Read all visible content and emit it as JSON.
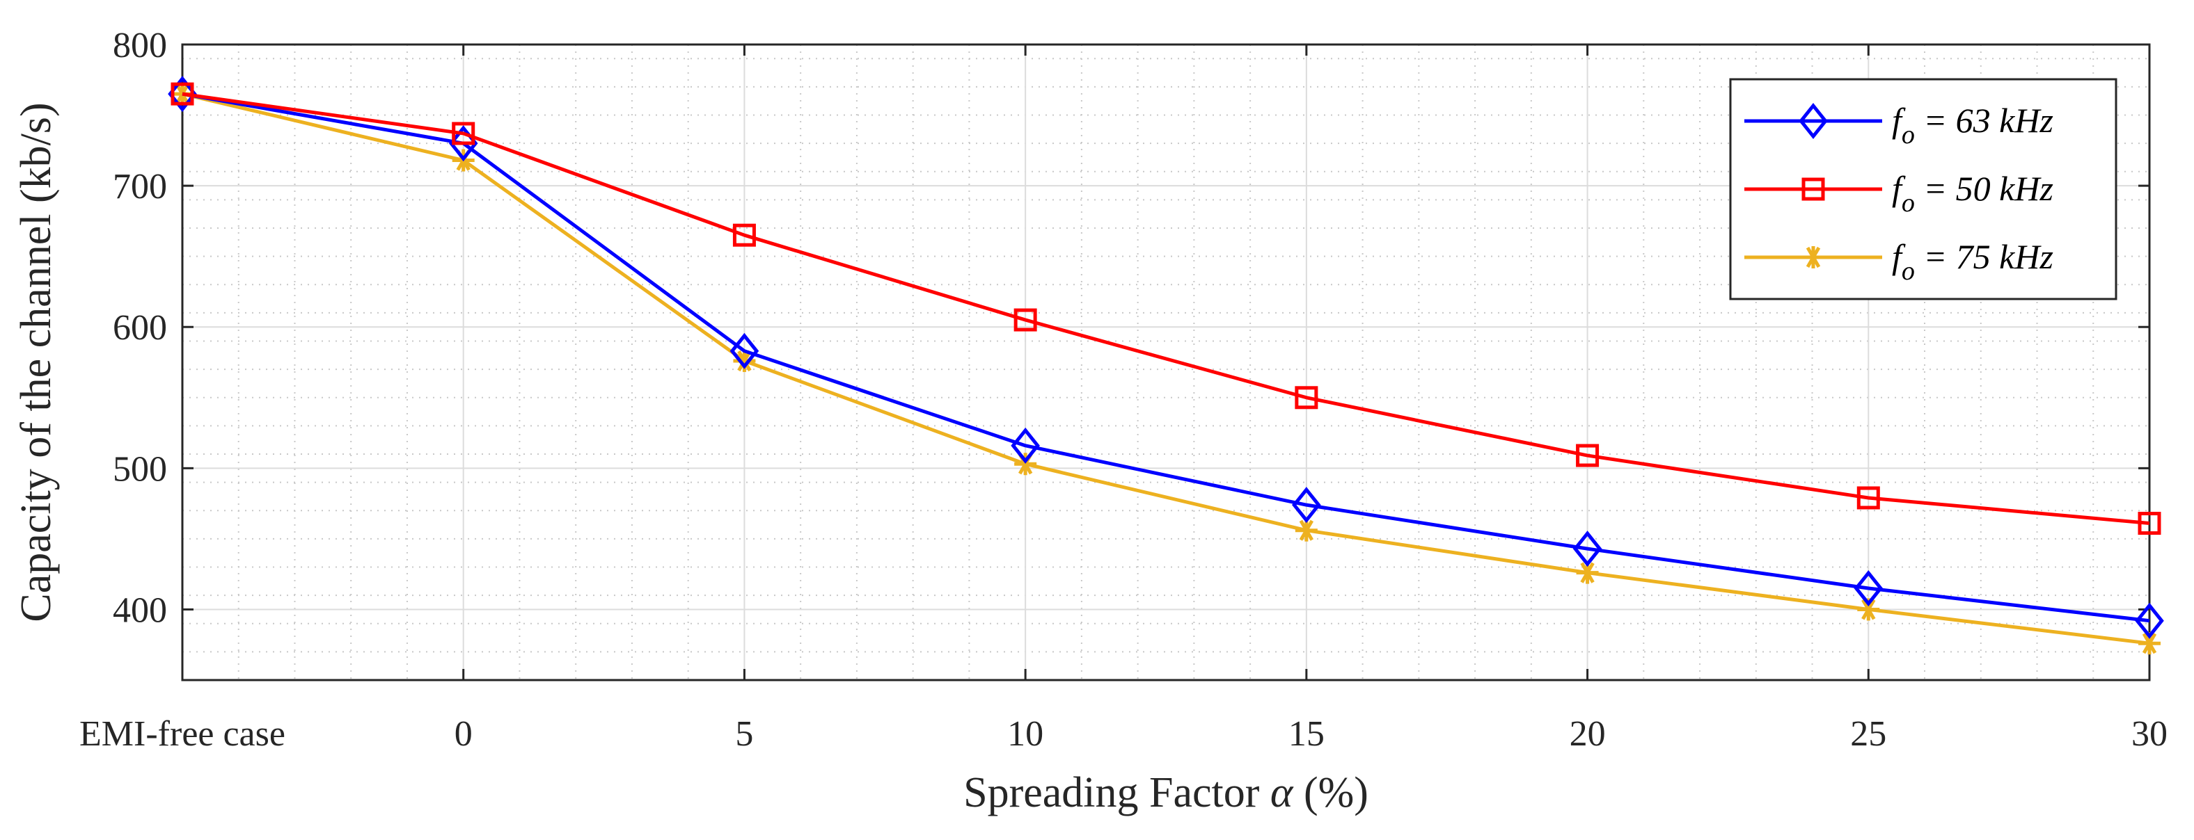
{
  "chart_data": {
    "type": "line",
    "title": "",
    "xlabel_prefix": "Spreading Factor ",
    "xlabel_symbol": "α",
    "xlabel_suffix": " (%)",
    "ylabel": "Capacity of the channel (kb/s)",
    "categories": [
      "EMI-free case",
      "0",
      "5",
      "10",
      "15",
      "20",
      "25",
      "30"
    ],
    "yticks": [
      "400",
      "500",
      "600",
      "700",
      "800"
    ],
    "ylim": [
      350,
      800
    ],
    "grid": true,
    "legend_position": "top-right",
    "series": [
      {
        "name": "fo = 63 kHz",
        "label_var": "f",
        "label_sub": "o",
        "label_rest": " = 63 kHz",
        "color": "#0000ff",
        "marker": "diamond",
        "values": [
          765,
          730,
          583,
          516,
          474,
          443,
          415,
          392
        ]
      },
      {
        "name": "fo = 50 kHz",
        "label_var": "f",
        "label_sub": "o",
        "label_rest": " = 50 kHz",
        "color": "#ff0000",
        "marker": "square",
        "values": [
          765,
          737,
          665,
          605,
          550,
          509,
          479,
          461
        ]
      },
      {
        "name": "fo = 75 kHz",
        "label_var": "f",
        "label_sub": "o",
        "label_rest": " = 75 kHz",
        "color": "#edb120",
        "marker": "asterisk",
        "values": [
          765,
          718,
          576,
          503,
          456,
          426,
          400,
          376
        ]
      }
    ]
  }
}
